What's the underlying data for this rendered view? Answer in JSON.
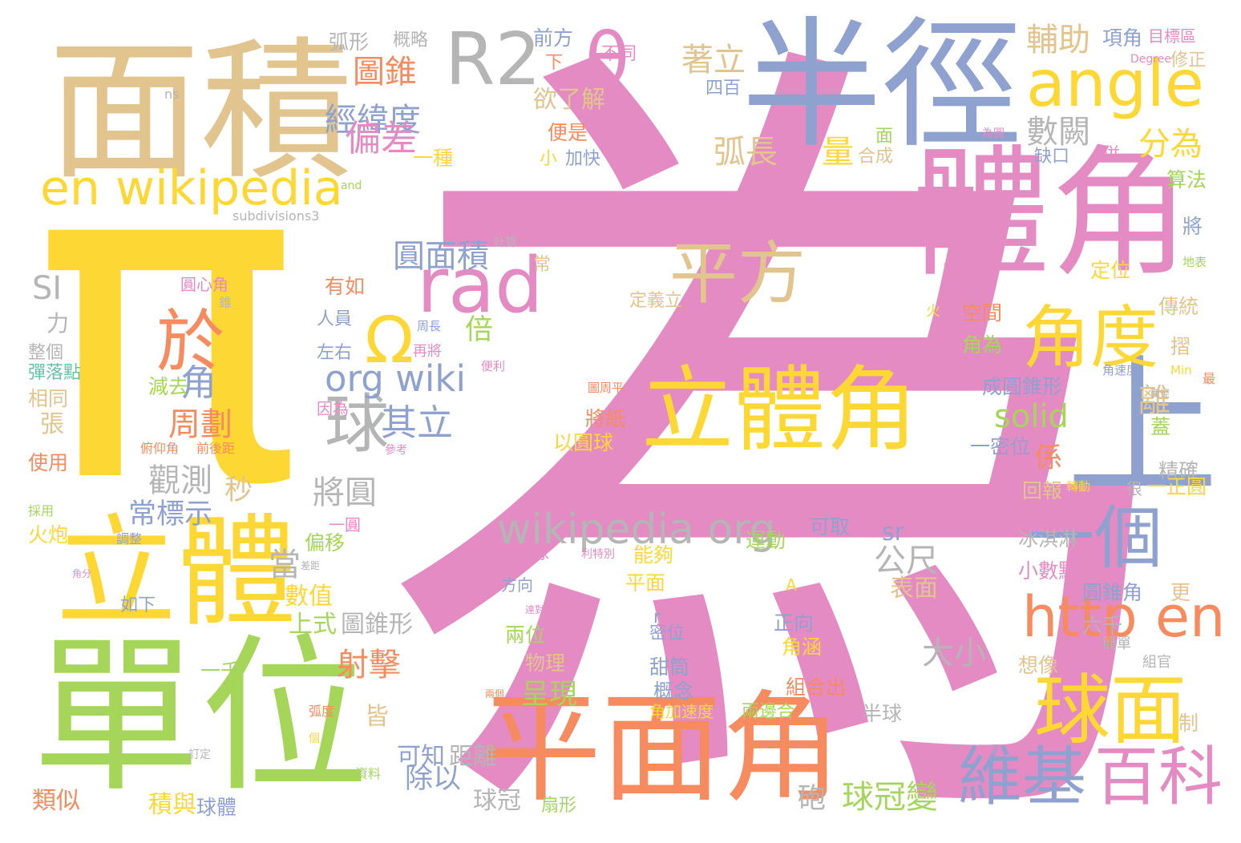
{
  "palette": {
    "pink": "#E48BC4",
    "yellow": "#FDD835",
    "green": "#A5D65A",
    "tan": "#E2C48E",
    "blue": "#8FA2CF",
    "orange": "#F68B5F",
    "gray": "#B5B5B5",
    "teal": "#66C2A5"
  },
  "words": [
    {
      "text": "為",
      "color": "#E48BC4"
    },
    {
      "text": "π",
      "color": "#FDD835"
    },
    {
      "text": "面積",
      "color": "#E2C48E"
    },
    {
      "text": "半徑",
      "color": "#8FA2CF"
    },
    {
      "text": "體角",
      "color": "#E48BC4"
    },
    {
      "text": "單位",
      "color": "#A5D65A"
    },
    {
      "text": "平面角",
      "color": "#F68B5F"
    },
    {
      "text": "立體",
      "color": "#FDD835"
    },
    {
      "text": "立體角",
      "color": "#FDD835"
    },
    {
      "text": "上",
      "color": "#8FA2CF"
    },
    {
      "text": "R2",
      "color": "#B5B5B5"
    },
    {
      "text": "angle",
      "color": "#FDD835"
    },
    {
      "text": "θ",
      "color": "#E48BC4"
    },
    {
      "text": "en wikipedia",
      "color": "#FDD835"
    },
    {
      "text": "rad",
      "color": "#E48BC4"
    },
    {
      "text": "平方",
      "color": "#E2C48E"
    },
    {
      "text": "角度",
      "color": "#FDD835"
    },
    {
      "text": "於",
      "color": "#F68B5F"
    },
    {
      "text": "Ω",
      "color": "#FDD835"
    },
    {
      "text": "球",
      "color": "#B5B5B5"
    },
    {
      "text": "一個",
      "color": "#8FA2CF"
    },
    {
      "text": "http en",
      "color": "#F68B5F"
    },
    {
      "text": "球面",
      "color": "#FDD835"
    },
    {
      "text": "維基",
      "color": "#8FA2CF"
    },
    {
      "text": "百科",
      "color": "#E48BC4"
    },
    {
      "text": "wikipedia org",
      "color": "#B5B5B5"
    },
    {
      "text": "org wiki",
      "color": "#8FA2CF"
    },
    {
      "text": "圖錐",
      "color": "#F68B5F"
    },
    {
      "text": "經緯度",
      "color": "#8FA2CF"
    },
    {
      "text": "偏差",
      "color": "#E48BC4"
    },
    {
      "text": "著立",
      "color": "#E2C48E"
    },
    {
      "text": "弧長",
      "color": "#E2C48E"
    },
    {
      "text": "量",
      "color": "#FDD835"
    },
    {
      "text": "輔助",
      "color": "#E2C48E"
    },
    {
      "text": "數闕",
      "color": "#B5B5B5"
    },
    {
      "text": "分為",
      "color": "#FDD835"
    },
    {
      "text": "圓面積",
      "color": "#8FA2CF"
    },
    {
      "text": "倍",
      "color": "#A5D65A"
    },
    {
      "text": "角",
      "color": "#8FA2CF"
    },
    {
      "text": "周劃",
      "color": "#F68B5F"
    },
    {
      "text": "其立",
      "color": "#8FA2CF"
    },
    {
      "text": "solid",
      "color": "#A5D65A"
    },
    {
      "text": "係",
      "color": "#F68B5F"
    },
    {
      "text": "離",
      "color": "#E2C48E"
    },
    {
      "text": "觀測",
      "color": "#B5B5B5"
    },
    {
      "text": "秒",
      "color": "#E2C48E"
    },
    {
      "text": "將圓",
      "color": "#B5B5B5"
    },
    {
      "text": "常標示",
      "color": "#8FA2CF"
    },
    {
      "text": "SI",
      "color": "#B5B5B5"
    },
    {
      "text": "公尺",
      "color": "#B5B5B5"
    },
    {
      "text": "射擊",
      "color": "#F68B5F"
    },
    {
      "text": "大小",
      "color": "#B5B5B5"
    },
    {
      "text": "呈現",
      "color": "#A5D65A"
    },
    {
      "text": "除以",
      "color": "#8FA2CF"
    },
    {
      "text": "球冠變",
      "color": "#A5D65A"
    },
    {
      "text": "砲",
      "color": "#B5B5B5"
    },
    {
      "text": "sr",
      "color": "#8FA2CF"
    },
    {
      "text": "表面",
      "color": "#E2C48E"
    },
    {
      "text": "上式",
      "color": "#A5D65A"
    },
    {
      "text": "圖錐形",
      "color": "#B5B5B5"
    },
    {
      "text": "當",
      "color": "#B5B5B5"
    },
    {
      "text": "數值",
      "color": "#FDD835"
    },
    {
      "text": "皆",
      "color": "#E2C48E"
    },
    {
      "text": "可知",
      "color": "#8FA2CF"
    },
    {
      "text": "距離",
      "color": "#B5B5B5"
    },
    {
      "text": "球冠",
      "color": "#B5B5B5"
    },
    {
      "text": "類似",
      "color": "#F68B5F"
    },
    {
      "text": "積與",
      "color": "#FDD835"
    },
    {
      "text": "球體",
      "color": "#8FA2CF"
    },
    {
      "text": "一千",
      "color": "#A5D65A"
    },
    {
      "text": "弧形",
      "color": "#B5B5B5"
    },
    {
      "text": "概略",
      "color": "#B5B5B5"
    },
    {
      "text": "前方",
      "color": "#8FA2CF"
    },
    {
      "text": "下",
      "color": "#F68B5F"
    },
    {
      "text": "不同",
      "color": "#E48BC4"
    },
    {
      "text": "項角",
      "color": "#8FA2CF"
    },
    {
      "text": "目標區",
      "color": "#E48BC4"
    },
    {
      "text": "Degree",
      "color": "#E48BC4"
    },
    {
      "text": "修正",
      "color": "#E2C48E"
    },
    {
      "text": "四百",
      "color": "#8FA2CF"
    },
    {
      "text": "欲了解",
      "color": "#E2C48E"
    },
    {
      "text": "便是",
      "color": "#F68B5F"
    },
    {
      "text": "一種",
      "color": "#FDD835"
    },
    {
      "text": "小",
      "color": "#FDD835"
    },
    {
      "text": "加快",
      "color": "#8FA2CF"
    },
    {
      "text": "面",
      "color": "#A5D65A"
    },
    {
      "text": "合成",
      "color": "#E2C48E"
    },
    {
      "text": "缺口",
      "color": "#8FA2CF"
    },
    {
      "text": "併",
      "color": "#E48BC4"
    },
    {
      "text": "為圓",
      "color": "#E48BC4"
    },
    {
      "text": "算法",
      "color": "#A5D65A"
    },
    {
      "text": "將",
      "color": "#8FA2CF"
    },
    {
      "text": "地表",
      "color": "#A5D65A"
    },
    {
      "text": "定位",
      "color": "#FDD835"
    },
    {
      "text": "傳統",
      "color": "#E2C48E"
    },
    {
      "text": "空間",
      "color": "#F68B5F"
    },
    {
      "text": "角為",
      "color": "#A5D65A"
    },
    {
      "text": "摺",
      "color": "#E2C48E"
    },
    {
      "text": "成圓錐形",
      "color": "#8FA2CF"
    },
    {
      "text": "一密位",
      "color": "#8FA2CF"
    },
    {
      "text": "蓋",
      "color": "#A5D65A"
    },
    {
      "text": "精確",
      "color": "#B5B5B5"
    },
    {
      "text": "一正圓",
      "color": "#FDD835"
    },
    {
      "text": "回報",
      "color": "#E2C48E"
    },
    {
      "text": "轉動",
      "color": "#FDD835"
    },
    {
      "text": "很",
      "color": "#B5B5B5"
    },
    {
      "text": "冰淇淋",
      "color": "#B5B5B5"
    },
    {
      "text": "小數點",
      "color": "#E48BC4"
    },
    {
      "text": "圓錐角",
      "color": "#8FA2CF"
    },
    {
      "text": "更",
      "color": "#E2C48E"
    },
    {
      "text": "六千",
      "color": "#B5B5B5"
    },
    {
      "text": "簡單",
      "color": "#B5B5B5"
    },
    {
      "text": "想像",
      "color": "#E2C48E"
    },
    {
      "text": "組官",
      "color": "#B5B5B5"
    },
    {
      "text": "半球",
      "color": "#B5B5B5"
    },
    {
      "text": "制",
      "color": "#E2C48E"
    },
    {
      "text": "誤差",
      "color": "#E48BC4"
    },
    {
      "text": "角速度",
      "color": "#8FA2CF"
    },
    {
      "text": "面徑",
      "color": "#B5B5B5"
    },
    {
      "text": "Min",
      "color": "#FDD835"
    },
    {
      "text": "最",
      "color": "#F68B5F"
    },
    {
      "text": "火",
      "color": "#FDD835"
    },
    {
      "text": "常",
      "color": "#E2C48E"
    },
    {
      "text": "定義立",
      "color": "#E2C48E"
    },
    {
      "text": "計算",
      "color": "#B5B5B5"
    },
    {
      "text": "subdivisions3",
      "color": "#B5B5B5"
    },
    {
      "text": "and",
      "color": "#A5D65A"
    },
    {
      "text": "ns",
      "color": "#B5B5B5"
    },
    {
      "text": "圓心角",
      "color": "#E48BC4"
    },
    {
      "text": "錐",
      "color": "#B5B5B5"
    },
    {
      "text": "有如",
      "color": "#F68B5F"
    },
    {
      "text": "人員",
      "color": "#8FA2CF"
    },
    {
      "text": "周長",
      "color": "#8FA2CF"
    },
    {
      "text": "力",
      "color": "#B5B5B5"
    },
    {
      "text": "左右",
      "color": "#8FA2CF"
    },
    {
      "text": "再將",
      "color": "#E48BC4"
    },
    {
      "text": "來",
      "color": "#FDD835"
    },
    {
      "text": "整個",
      "color": "#B5B5B5"
    },
    {
      "text": "彈落點",
      "color": "#66C2A5"
    },
    {
      "text": "減去",
      "color": "#A5D65A"
    },
    {
      "text": "便利",
      "color": "#E48BC4"
    },
    {
      "text": "相同",
      "color": "#E2C48E"
    },
    {
      "text": "因為",
      "color": "#E48BC4"
    },
    {
      "text": "圖周平",
      "color": "#F68B5F"
    },
    {
      "text": "將紙",
      "color": "#F68B5F"
    },
    {
      "text": "張",
      "color": "#E2C48E"
    },
    {
      "text": "俯仰角",
      "color": "#F68B5F"
    },
    {
      "text": "前後距",
      "color": "#F68B5F"
    },
    {
      "text": "參考",
      "color": "#E48BC4"
    },
    {
      "text": "以圓球",
      "color": "#FDD835"
    },
    {
      "text": "使用",
      "color": "#F68B5F"
    },
    {
      "text": "採用",
      "color": "#A5D65A"
    },
    {
      "text": "火炮",
      "color": "#FDD835"
    },
    {
      "text": "調整",
      "color": "#8FA2CF"
    },
    {
      "text": "一圓",
      "color": "#E48BC4"
    },
    {
      "text": "偏移",
      "color": "#A5D65A"
    },
    {
      "text": "運動",
      "color": "#A5D65A"
    },
    {
      "text": "可取",
      "color": "#8FA2CF"
    },
    {
      "text": "半圓球",
      "color": "#E48BC4"
    },
    {
      "text": "利特別",
      "color": "#E48BC4"
    },
    {
      "text": "能夠",
      "color": "#FDD835"
    },
    {
      "text": "角分",
      "color": "#E48BC4"
    },
    {
      "text": "差距",
      "color": "#B5B5B5"
    },
    {
      "text": "如下",
      "color": "#8FA2CF"
    },
    {
      "text": "方向",
      "color": "#8FA2CF"
    },
    {
      "text": "平面",
      "color": "#FDD835"
    },
    {
      "text": "A",
      "color": "#FDD835"
    },
    {
      "text": "達對",
      "color": "#E48BC4"
    },
    {
      "text": "r",
      "color": "#8FA2CF"
    },
    {
      "text": "正向",
      "color": "#8FA2CF"
    },
    {
      "text": "兩位",
      "color": "#A5D65A"
    },
    {
      "text": "密位",
      "color": "#8FA2CF"
    },
    {
      "text": "物理",
      "color": "#E2C48E"
    },
    {
      "text": "角涵",
      "color": "#FDD835"
    },
    {
      "text": "甜筒",
      "color": "#8FA2CF"
    },
    {
      "text": "概念",
      "color": "#8FA2CF"
    },
    {
      "text": "組合出",
      "color": "#F68B5F"
    },
    {
      "text": "兩個",
      "color": "#F68B5F"
    },
    {
      "text": "角加速度",
      "color": "#FDD835"
    },
    {
      "text": "兩邊合",
      "color": "#A5D65A"
    },
    {
      "text": "弧度",
      "color": "#F68B5F"
    },
    {
      "text": "個",
      "color": "#FDD835"
    },
    {
      "text": "訂定",
      "color": "#B5B5B5"
    },
    {
      "text": "資料",
      "color": "#A5D65A"
    },
    {
      "text": "扇形",
      "color": "#A5D65A"
    }
  ]
}
